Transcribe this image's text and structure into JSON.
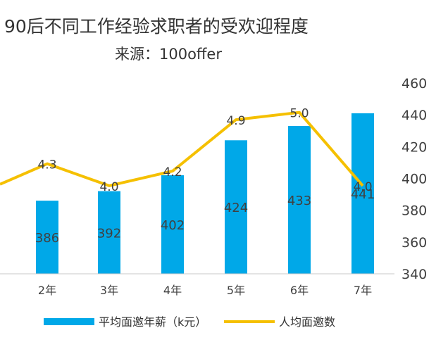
{
  "chart_data": {
    "type": "bar+line",
    "title": "90后不同工作经验求职者的受欢迎程度",
    "subtitle": "来源：100offer",
    "categories": [
      "2年",
      "3年",
      "4年",
      "5年",
      "6年",
      "7年"
    ],
    "series": [
      {
        "name": "平均面邀年薪（k元）",
        "kind": "bar",
        "axis": "right",
        "color": "#00a8e8",
        "values": [
          386,
          392,
          402,
          424,
          433,
          441
        ]
      },
      {
        "name": "人均面邀数",
        "kind": "line",
        "axis": "hidden",
        "color": "#f5c000",
        "values": [
          4.3,
          4.0,
          4.2,
          4.9,
          5.0,
          4.0
        ],
        "labels": [
          "4.3",
          "4.0",
          "4.2",
          "4.9",
          "5.0",
          "4.0"
        ]
      }
    ],
    "right_axis": {
      "min": 340,
      "max": 460,
      "ticks": [
        340,
        360,
        380,
        400,
        420,
        440,
        460
      ]
    },
    "line_axis_range": [
      2.8,
      5.4
    ],
    "line_lead_in_value": 4.02,
    "legend": {
      "placement": "bottom",
      "entries": [
        "平均面邀年薪（k元）",
        "人均面邀数"
      ]
    }
  }
}
